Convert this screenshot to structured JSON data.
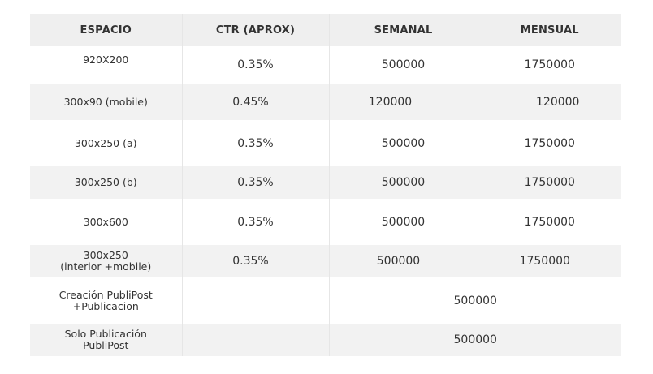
{
  "table": {
    "headers": {
      "space": "ESPACIO",
      "ctr": "CTR (APROX)",
      "weekly": "SEMANAL",
      "monthly": "MENSUAL"
    },
    "rows": [
      {
        "space": "920X200",
        "ctr": "0.35%",
        "weekly": "500000",
        "monthly": "1750000"
      },
      {
        "space": "300x90 (mobile)",
        "ctr": "0.45%",
        "weekly": "120000",
        "monthly": "120000"
      },
      {
        "space": "300x250 (a)",
        "ctr": "0.35%",
        "weekly": "500000",
        "monthly": "1750000"
      },
      {
        "space": "300x250 (b)",
        "ctr": "0.35%",
        "weekly": "500000",
        "monthly": "1750000"
      },
      {
        "space": "300x600",
        "ctr": "0.35%",
        "weekly": "500000",
        "monthly": "1750000"
      },
      {
        "space_line1": "300x250",
        "space_line2": "(interior +mobile)",
        "ctr": "0.35%",
        "weekly": "500000",
        "monthly": "1750000"
      },
      {
        "space_line1": "Creación PubliPost",
        "space_line2": "+Publicacion",
        "ctr": "",
        "value": "500000"
      },
      {
        "space_line1": "Solo Publicación",
        "space_line2": "PubliPost",
        "ctr": "",
        "value": "500000"
      }
    ]
  }
}
